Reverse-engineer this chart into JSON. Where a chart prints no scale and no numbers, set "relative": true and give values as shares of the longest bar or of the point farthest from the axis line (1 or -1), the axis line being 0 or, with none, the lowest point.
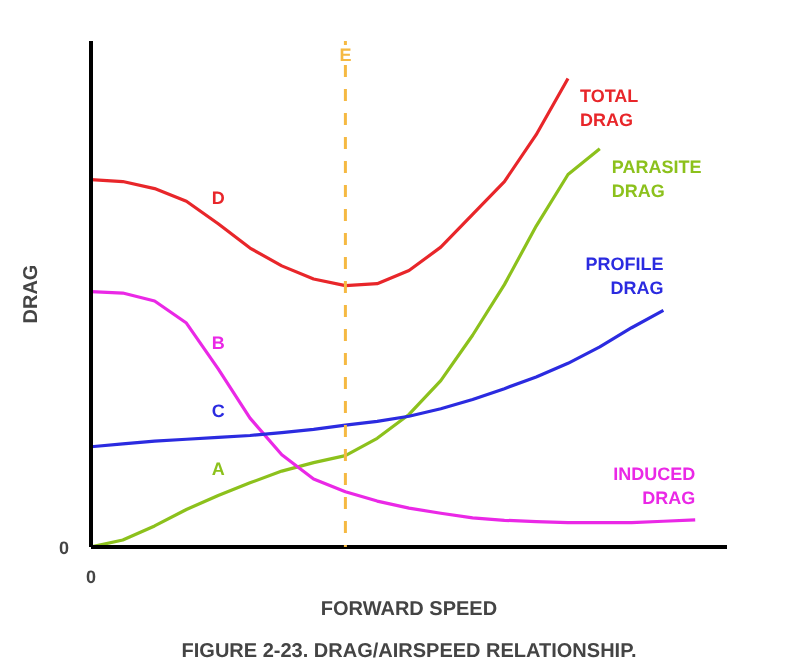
{
  "chart_data": {
    "type": "line",
    "title": "FIGURE 2-23. DRAG/AIRSPEED RELATIONSHIP.",
    "xlabel": "FORWARD SPEED",
    "ylabel": "DRAG",
    "relative": true,
    "grid": false,
    "categories": [
      null,
      null,
      null,
      null,
      null,
      null,
      null,
      null,
      null,
      null,
      null,
      null,
      null,
      null,
      null,
      null,
      null,
      null,
      null,
      null,
      null
    ],
    "series": [
      {
        "name": "PARASITE DRAG",
        "color": "#8cc11c",
        "values": [
          0,
          0.015,
          0.045,
          0.08,
          0.11,
          0.137,
          0.162,
          0.18,
          0.195,
          0.232,
          0.283,
          0.355,
          0.452,
          0.56,
          0.685,
          0.795,
          0.85,
          null,
          null,
          null,
          null
        ]
      },
      {
        "name": "INDUCED DRAG",
        "color": "#ea28e6",
        "values": [
          0.545,
          0.542,
          0.525,
          0.478,
          0.38,
          0.275,
          0.197,
          0.145,
          0.118,
          0.098,
          0.083,
          0.072,
          0.062,
          0.057,
          0.054,
          0.052,
          0.052,
          0.052,
          0.055,
          0.058,
          null
        ]
      },
      {
        "name": "PROFILE DRAG",
        "color": "#2b2be0",
        "values": [
          0.214,
          0.22,
          0.226,
          0.23,
          0.234,
          0.238,
          0.244,
          0.251,
          0.26,
          0.268,
          0.279,
          0.295,
          0.315,
          0.338,
          0.363,
          0.392,
          0.427,
          0.468,
          0.505,
          null,
          null
        ]
      },
      {
        "name": "TOTAL DRAG",
        "color": "#e8262a",
        "values": [
          0.784,
          0.78,
          0.765,
          0.738,
          0.69,
          0.638,
          0.6,
          0.572,
          0.558,
          0.562,
          0.59,
          0.64,
          0.71,
          0.78,
          0.88,
          1.0,
          null,
          null,
          null,
          null,
          null
        ]
      }
    ],
    "annotations": [
      "A",
      "B",
      "C",
      "D",
      "0",
      "0",
      "E"
    ]
  }
}
